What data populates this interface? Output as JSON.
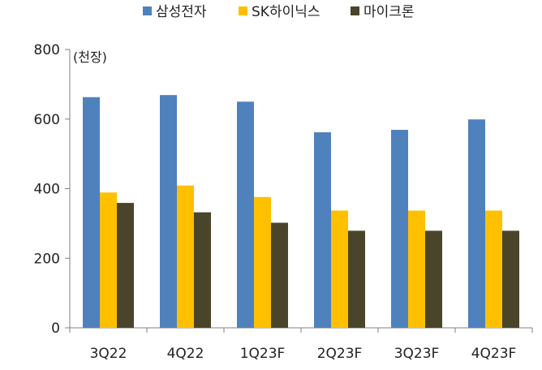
{
  "chart_data": {
    "type": "bar",
    "title": "",
    "unit_label": "(천장)",
    "xlabel": "",
    "ylabel": "",
    "ylim": [
      0,
      800
    ],
    "yticks": [
      0,
      200,
      400,
      600,
      800
    ],
    "grid": false,
    "legend_position": "top",
    "categories": [
      "3Q22",
      "4Q22",
      "1Q23F",
      "2Q23F",
      "3Q23F",
      "4Q23F"
    ],
    "series": [
      {
        "name": "삼성전자",
        "color": "#4f81bd",
        "values": [
          663,
          669,
          650,
          562,
          569,
          599
        ]
      },
      {
        "name": "SK하이닉스",
        "color": "#ffc000",
        "values": [
          389,
          409,
          376,
          337,
          337,
          337
        ]
      },
      {
        "name": "마이크론",
        "color": "#4a452a",
        "values": [
          359,
          332,
          302,
          279,
          279,
          279
        ]
      }
    ]
  }
}
